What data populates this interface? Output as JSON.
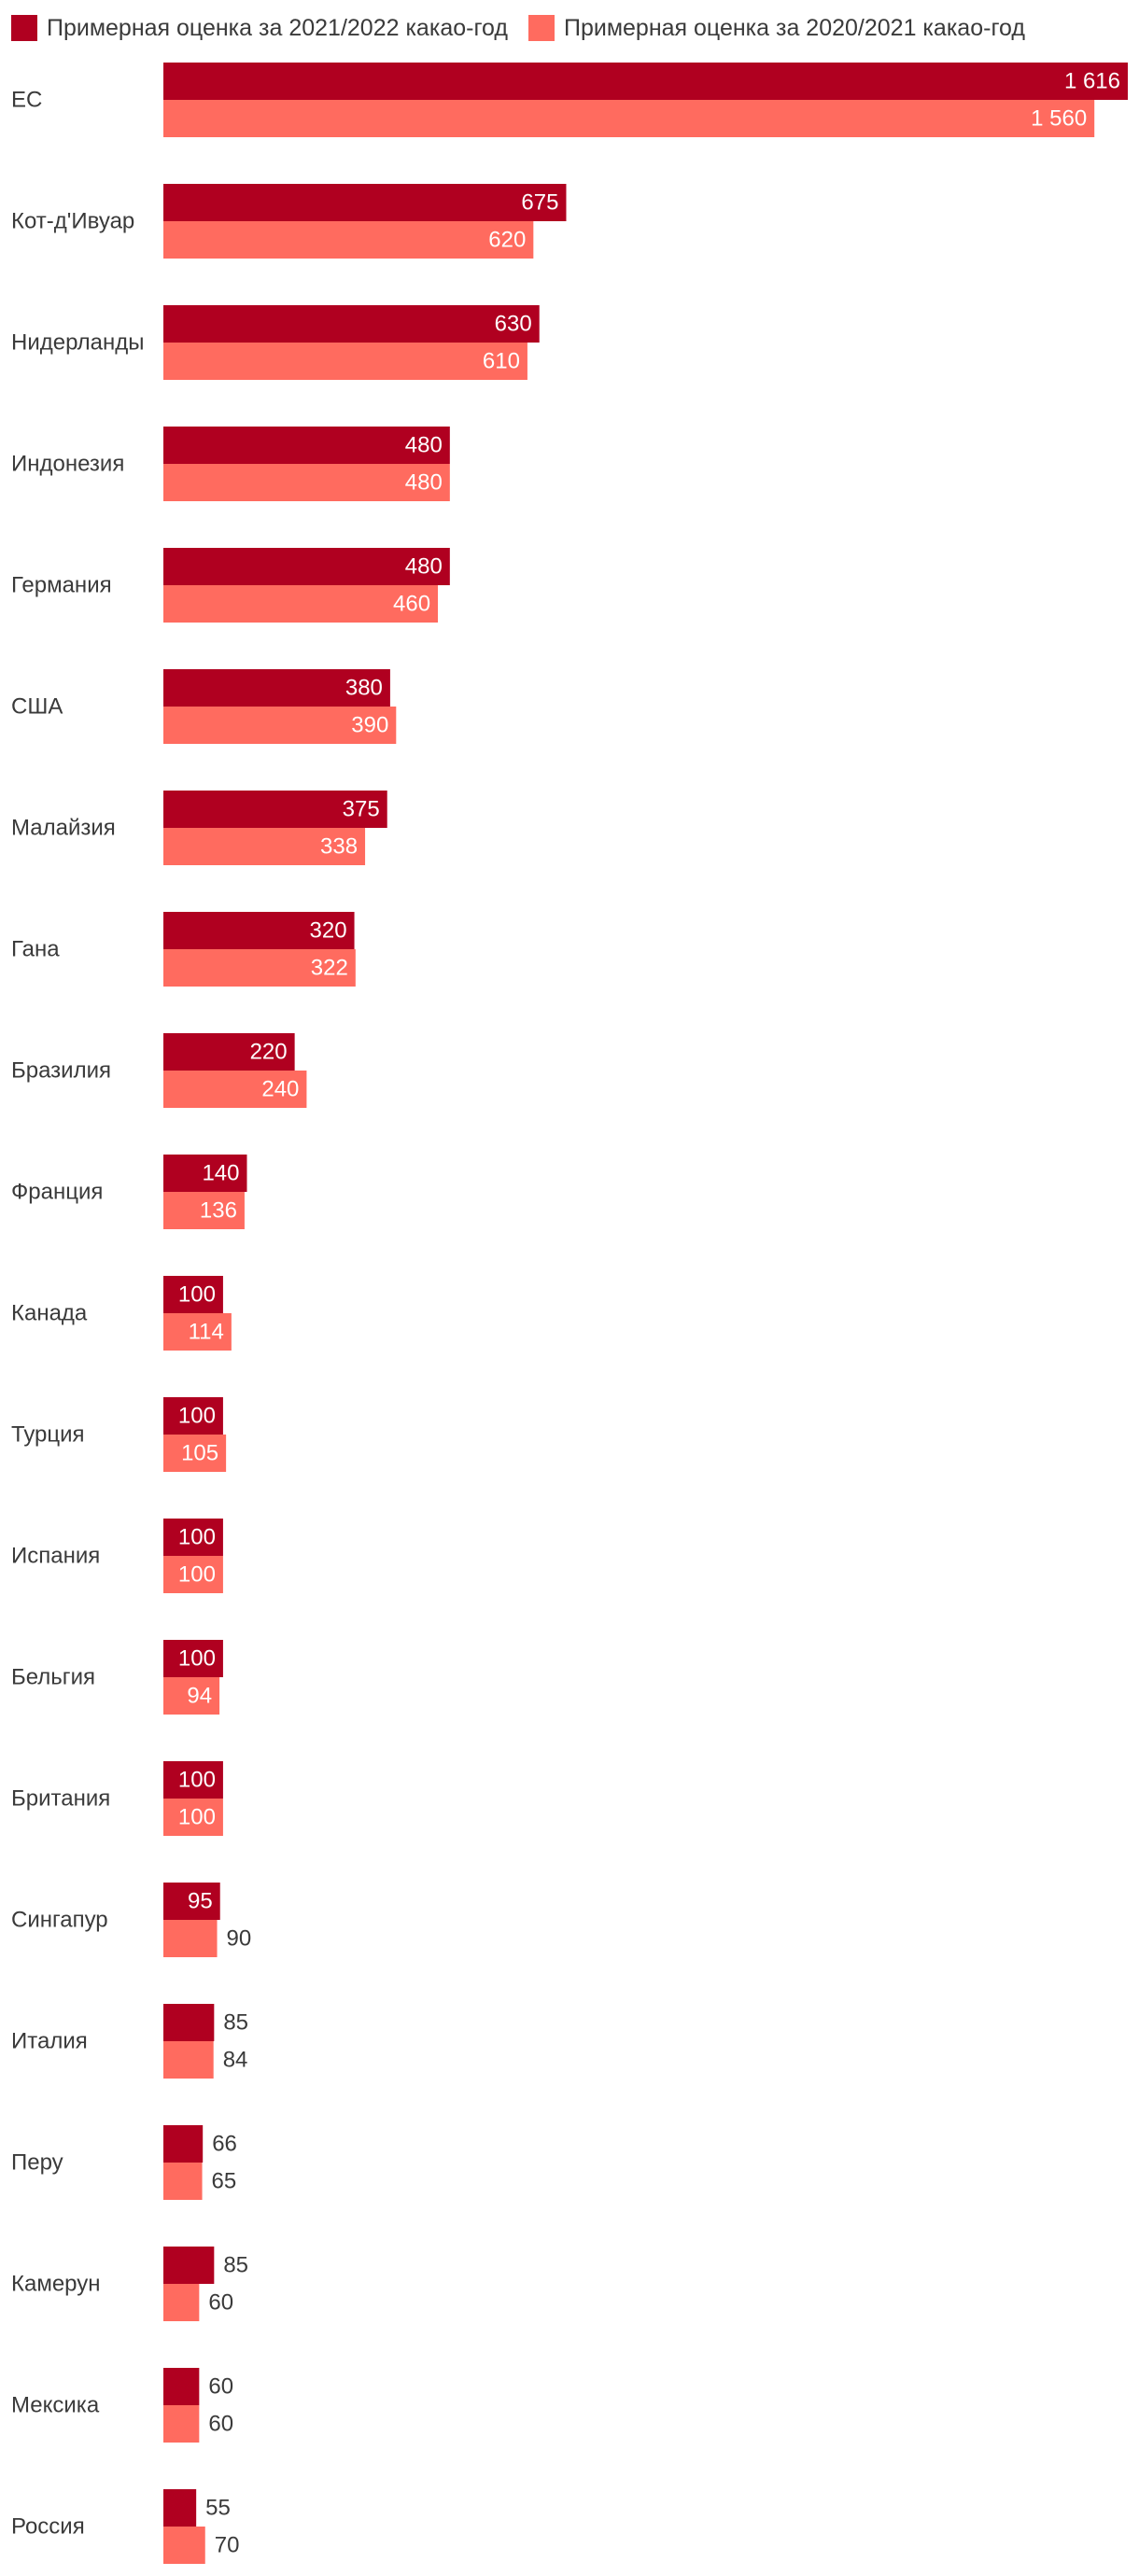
{
  "colors": {
    "series_2021": "#b00020",
    "series_2020": "#ff6b5f",
    "label_inside": "#ffffff",
    "label_outside": "#3a3a3a",
    "category_text": "#3a3a3a"
  },
  "chart_data": {
    "type": "bar",
    "orientation": "horizontal",
    "title": "",
    "xlabel": "",
    "ylabel": "",
    "grid": false,
    "legend_position": "top-left",
    "categories": [
      "ЕС",
      "Кот-д'Ивуар",
      "Нидерланды",
      "Индонезия",
      "Германия",
      "США",
      "Малайзия",
      "Гана",
      "Бразилия",
      "Франция",
      "Канада",
      "Турция",
      "Испания",
      "Бельгия",
      "Британия",
      "Сингапур",
      "Италия",
      "Перу",
      "Камерун",
      "Мексика",
      "Россия"
    ],
    "series": [
      {
        "name": "Примерная оценка за 2021/2022 какао-год",
        "values": [
          1616,
          675,
          630,
          480,
          480,
          380,
          375,
          320,
          220,
          140,
          100,
          100,
          100,
          100,
          100,
          95,
          85,
          66,
          85,
          60,
          55
        ],
        "labels": [
          "1 616",
          "675",
          "630",
          "480",
          "480",
          "380",
          "375",
          "320",
          "220",
          "140",
          "100",
          "100",
          "100",
          "100",
          "100",
          "95",
          "85",
          "66",
          "85",
          "60",
          "55"
        ]
      },
      {
        "name": "Примерная оценка за 2020/2021 какао-год",
        "values": [
          1560,
          620,
          610,
          480,
          460,
          390,
          338,
          322,
          240,
          136,
          114,
          105,
          100,
          94,
          100,
          90,
          84,
          65,
          60,
          60,
          70
        ],
        "labels": [
          "1 560",
          "620",
          "610",
          "480",
          "460",
          "390",
          "338",
          "322",
          "240",
          "136",
          "114",
          "105",
          "100",
          "94",
          "100",
          "90",
          "84",
          "65",
          "60",
          "60",
          "70"
        ]
      }
    ]
  }
}
